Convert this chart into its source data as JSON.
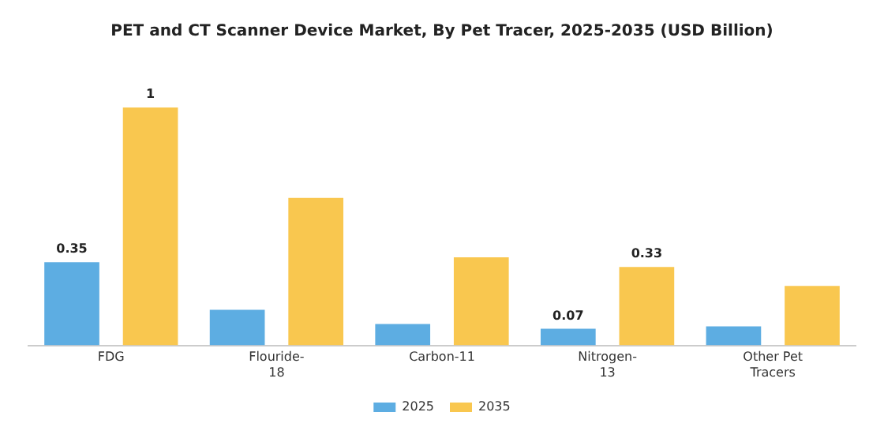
{
  "chart_data": {
    "type": "bar",
    "title": "PET and CT Scanner Device Market, By Pet Tracer, 2025-2035 (USD Billion)",
    "categories": [
      "FDG",
      "Flouride-18",
      "Carbon-11",
      "Nitrogen-13",
      "Other Pet Tracers"
    ],
    "series": [
      {
        "name": "2025",
        "color": "#5dade2",
        "values": [
          0.35,
          0.15,
          0.09,
          0.07,
          0.08
        ],
        "value_labels": [
          "0.35",
          null,
          null,
          "0.07",
          null
        ]
      },
      {
        "name": "2035",
        "color": "#f9c74f",
        "values": [
          1,
          0.62,
          0.37,
          0.33,
          0.25
        ],
        "value_labels": [
          "1",
          null,
          null,
          "0.33",
          null
        ]
      }
    ],
    "legend": "bottom",
    "grid": false
  }
}
